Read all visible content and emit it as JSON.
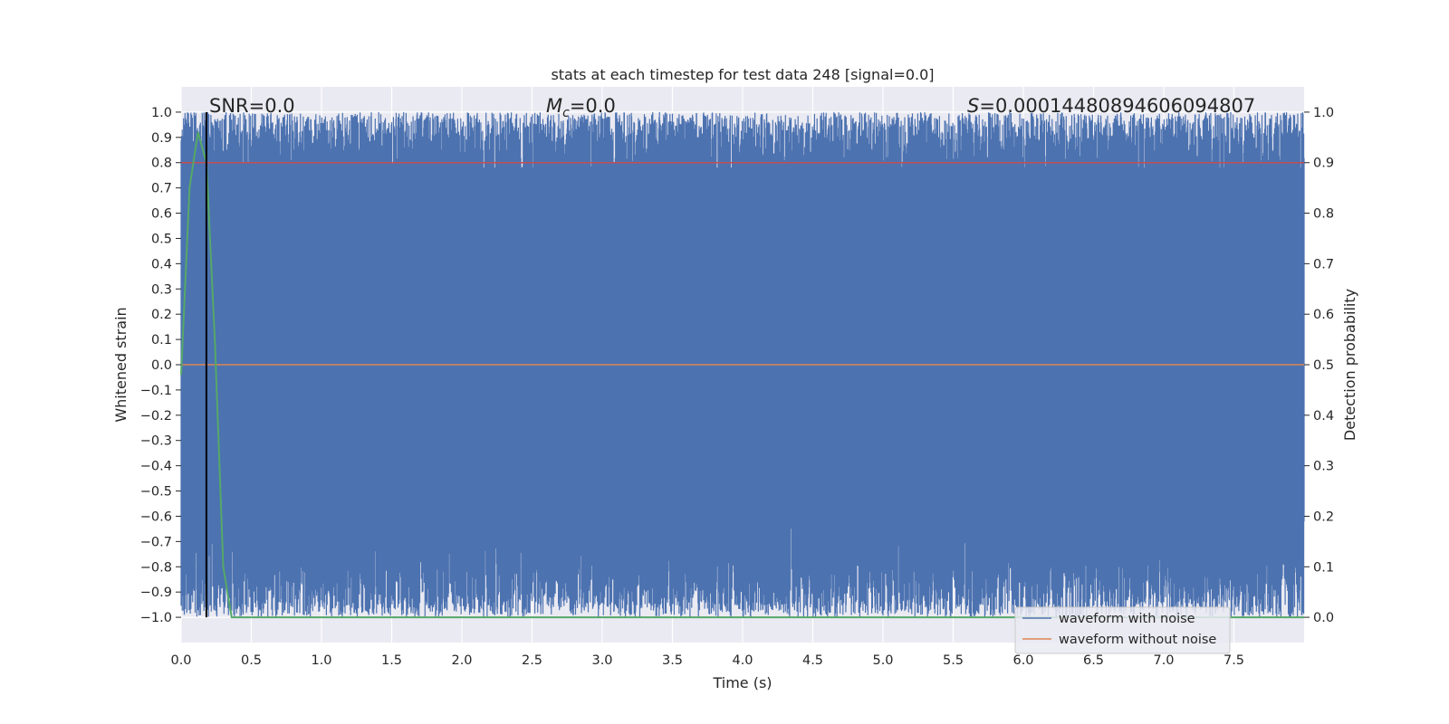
{
  "chart_data": {
    "type": "line",
    "title": "stats at each timestep for test data 248 [signal=0.0]",
    "xlabel": "Time (s)",
    "ylabel": "Whitened strain",
    "y2label": "Detection probability",
    "xlim": [
      0.0,
      8.0
    ],
    "ylim": [
      -1.1,
      1.1
    ],
    "y2lim": [
      -0.05,
      1.05
    ],
    "x_ticks": [
      "0.0",
      "0.5",
      "1.0",
      "1.5",
      "2.0",
      "2.5",
      "3.0",
      "3.5",
      "4.0",
      "4.5",
      "5.0",
      "5.5",
      "6.0",
      "6.5",
      "7.0",
      "7.5"
    ],
    "y_ticks": [
      "1.0",
      "0.9",
      "0.8",
      "0.7",
      "0.6",
      "0.5",
      "0.4",
      "0.3",
      "0.2",
      "0.1",
      "0.0",
      "−0.1",
      "−0.2",
      "−0.3",
      "−0.4",
      "−0.5",
      "−0.6",
      "−0.7",
      "−0.8",
      "−0.9",
      "−1.0"
    ],
    "y2_ticks": [
      "1.0",
      "0.9",
      "0.8",
      "0.7",
      "0.6",
      "0.5",
      "0.4",
      "0.3",
      "0.2",
      "0.1",
      "0.0"
    ],
    "grid": true,
    "legend_location": "bottom-right",
    "annotations": {
      "snr": "SNR=0.0",
      "mc_sym": "M",
      "mc_sub": "c",
      "mc_val": "=0.0",
      "s_sym": "S",
      "s_val": "=0.00014480894606094807"
    },
    "series": [
      {
        "name": "waveform with noise",
        "color": "#4c72b0",
        "axis": "left",
        "description_values": {
          "envelope_min": -1.0,
          "envelope_max": 1.0
        }
      },
      {
        "name": "waveform without noise",
        "color": "#dd8452",
        "axis": "left",
        "values_constant": 0.0
      },
      {
        "axis": "right",
        "color": "#c44e52",
        "values_constant": 0.9
      },
      {
        "axis": "right",
        "color": "#55a868",
        "x": [
          0.0,
          0.06,
          0.12,
          0.18,
          0.24,
          0.3,
          0.36,
          0.45,
          8.0
        ],
        "y": [
          0.48,
          0.85,
          0.96,
          0.9,
          0.55,
          0.1,
          0.0,
          0.0,
          0.0
        ]
      }
    ],
    "vertical_line": {
      "x": 0.18,
      "color": "#000000"
    }
  }
}
